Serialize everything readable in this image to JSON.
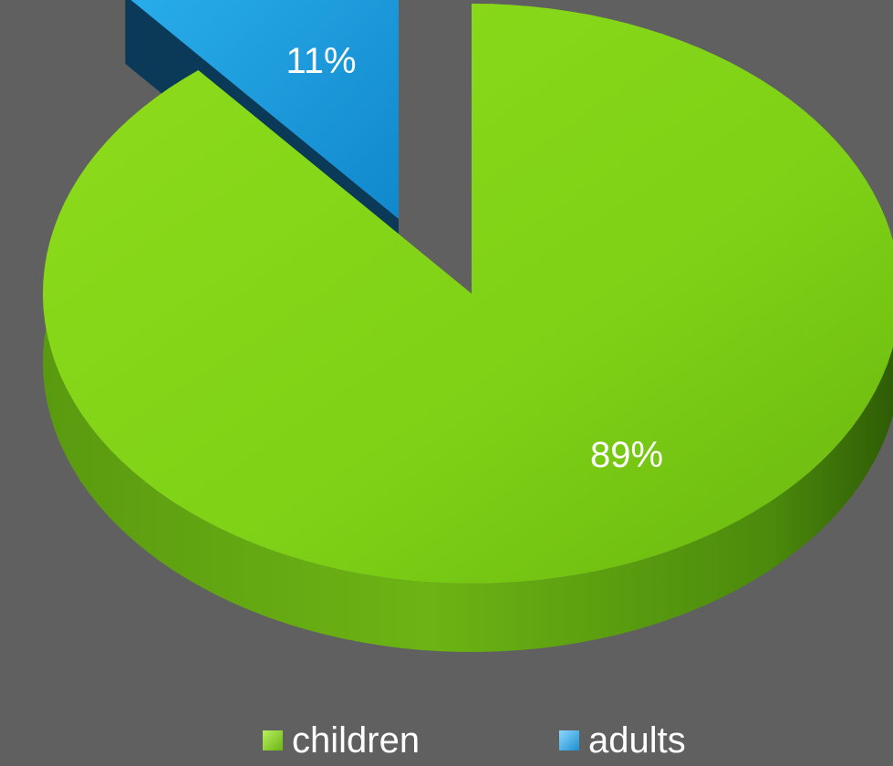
{
  "chart_data": {
    "type": "pie",
    "style": "3d-exploded",
    "categories": [
      "children",
      "adults"
    ],
    "values": [
      89,
      11
    ],
    "labels": [
      "89%",
      "11%"
    ],
    "colors": [
      "#7ecb1a",
      "#1a9fe0"
    ],
    "legend_position": "bottom",
    "background": "#606060"
  }
}
